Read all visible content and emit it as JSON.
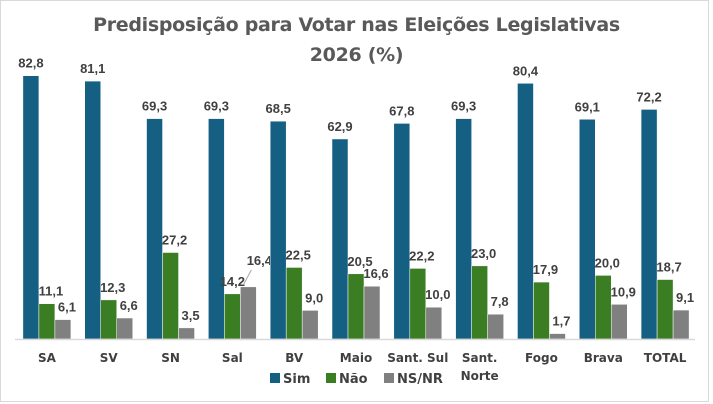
{
  "chart_data": {
    "type": "bar",
    "title": "Predisposição para Votar nas  Eleições Legislativas 2026 (%)",
    "title_lines": [
      "Predisposição para Votar nas  Eleições Legislativas",
      "2026 (%)"
    ],
    "xlabel": "",
    "ylabel": "",
    "ylim": [
      0,
      85
    ],
    "grid": false,
    "legend_position": "bottom",
    "categories": [
      "SA",
      "SV",
      "SN",
      "Sal",
      "BV",
      "Maio",
      "Sant. Sul",
      "Sant. Norte",
      "Fogo",
      "Brava",
      "TOTAL"
    ],
    "category_lines": [
      [
        "SA"
      ],
      [
        "SV"
      ],
      [
        "SN"
      ],
      [
        "Sal"
      ],
      [
        "BV"
      ],
      [
        "Maio"
      ],
      [
        "Sant. Sul"
      ],
      [
        "Sant.",
        "Norte"
      ],
      [
        "Fogo"
      ],
      [
        "Brava"
      ],
      [
        "TOTAL"
      ]
    ],
    "series": [
      {
        "name": "Sim",
        "color": "#156082",
        "values": [
          82.8,
          81.1,
          69.3,
          69.3,
          68.5,
          62.9,
          67.8,
          69.3,
          80.4,
          69.1,
          72.2
        ],
        "labels": [
          "82,8",
          "81,1",
          "69,3",
          "69,3",
          "68,5",
          "62,9",
          "67,8",
          "69,3",
          "80,4",
          "69,1",
          "72,2"
        ]
      },
      {
        "name": "Não",
        "color": "#3b7d23",
        "values": [
          11.1,
          12.3,
          27.2,
          14.2,
          22.5,
          20.5,
          22.2,
          23.0,
          17.9,
          20.0,
          18.7
        ],
        "labels": [
          "11,1",
          "12,3",
          "27,2",
          "14,2",
          "22,5",
          "20,5",
          "22,2",
          "23,0",
          "17,9",
          "20,0",
          "18,7"
        ]
      },
      {
        "name": "NS/NR",
        "color": "#808080",
        "values": [
          6.1,
          6.6,
          3.5,
          16.4,
          9.0,
          16.6,
          10.0,
          7.8,
          1.7,
          10.9,
          9.1
        ],
        "labels": [
          "6,1",
          "6,6",
          "3,5",
          "16,4",
          "9,0",
          "16,6",
          "10,0",
          "7,8",
          "1,7",
          "10,9",
          "9,1"
        ]
      }
    ]
  }
}
